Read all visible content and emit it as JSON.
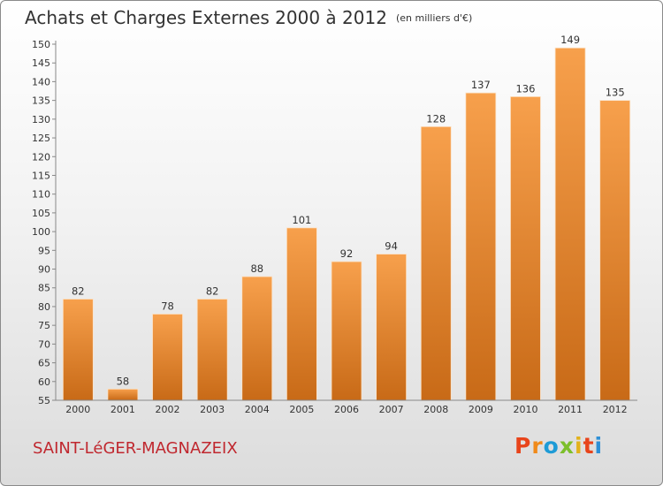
{
  "header": {
    "title": "Achats et Charges Externes 2000 à 2012",
    "unit": "(en milliers d'€)"
  },
  "footer": {
    "town": "SAINT-LéGER-MAGNAZEIX"
  },
  "logo": {
    "letters": [
      "P",
      "r",
      "o",
      "x",
      "i",
      "t",
      "i"
    ],
    "colors": [
      "#e8441b",
      "#f08a1a",
      "#1e9bd6",
      "#7cbf2a",
      "#e2b21b",
      "#e8441b",
      "#2d8fd6"
    ]
  },
  "chart_data": {
    "type": "bar",
    "title": "Achats et Charges Externes 2000 à 2012",
    "subtitle": "(en milliers d'€)",
    "categories": [
      "2000",
      "2001",
      "2002",
      "2003",
      "2004",
      "2005",
      "2006",
      "2007",
      "2008",
      "2009",
      "2010",
      "2011",
      "2012"
    ],
    "values": [
      82,
      58,
      78,
      82,
      88,
      101,
      92,
      94,
      128,
      137,
      136,
      149,
      135
    ],
    "value_labels": [
      "82",
      "58",
      "78",
      "82",
      "88",
      "101",
      "92",
      "94",
      "128",
      "137",
      "136",
      "149",
      "135"
    ],
    "y_ticks": [
      "55",
      "60",
      "65",
      "70",
      "75",
      "80",
      "85",
      "90",
      "95",
      "100",
      "105",
      "110",
      "115",
      "120",
      "125",
      "130",
      "135",
      "140",
      "145",
      "150"
    ],
    "ylim": [
      55,
      150
    ],
    "ytick_step": 5,
    "grid": false,
    "bar_color": "#f0903a",
    "xlabel": "",
    "ylabel": ""
  }
}
